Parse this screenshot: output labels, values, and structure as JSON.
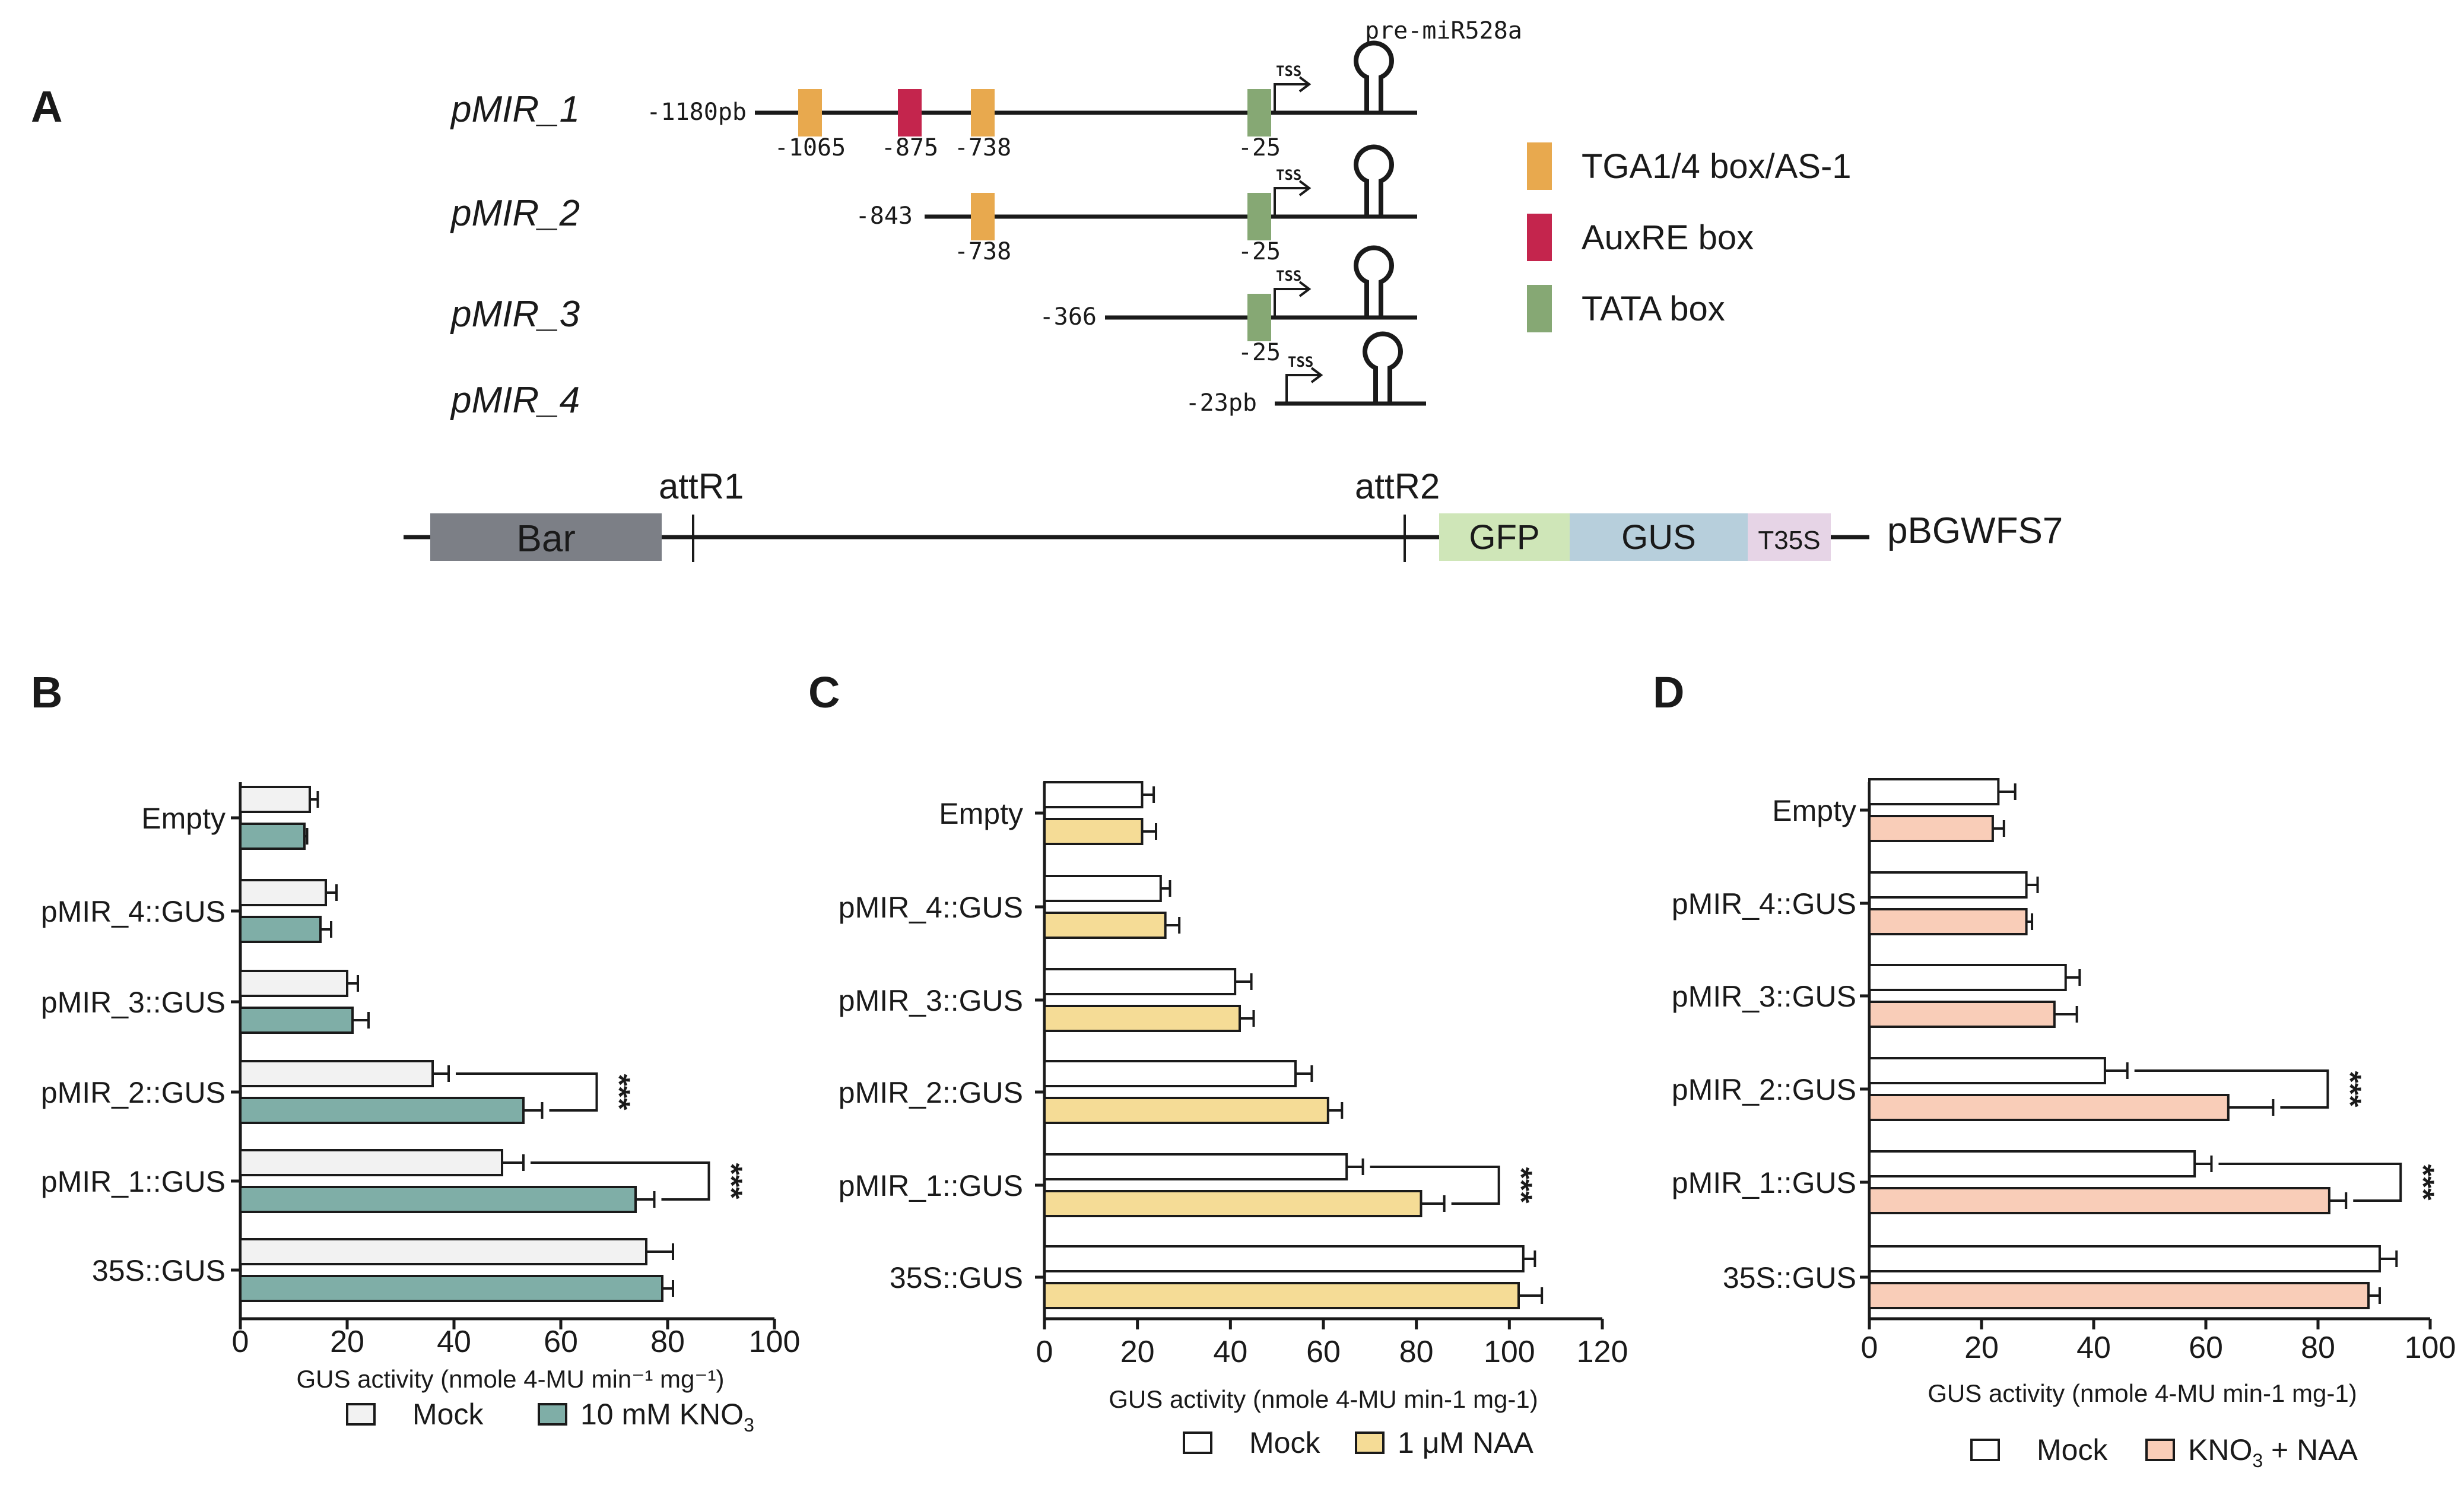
{
  "panel_a": {
    "letter": "A",
    "pre_mirna_label": "pre-miR528a",
    "tss_label": "TSS",
    "constructs": [
      {
        "name": "pMIR_1",
        "start_label": "-1180pb",
        "boxes": [
          {
            "type": "tga",
            "label": "-1065"
          },
          {
            "type": "auxre",
            "label": "-875"
          },
          {
            "type": "tga",
            "label": "-738"
          },
          {
            "type": "tata",
            "label": "-25"
          }
        ]
      },
      {
        "name": "pMIR_2",
        "start_label": "-843",
        "boxes": [
          {
            "type": "tga",
            "label": "-738"
          },
          {
            "type": "tata",
            "label": "-25"
          }
        ]
      },
      {
        "name": "pMIR_3",
        "start_label": "-366",
        "boxes": [
          {
            "type": "tata",
            "label": "-25"
          }
        ]
      },
      {
        "name": "pMIR_4",
        "start_label": "-23pb",
        "boxes": []
      }
    ],
    "legend": [
      {
        "key": "tga",
        "label": "TGA1/4 box/AS-1",
        "color": "#e8a94e"
      },
      {
        "key": "auxre",
        "label": "AuxRE box",
        "color": "#c4254d"
      },
      {
        "key": "tata",
        "label": "TATA box",
        "color": "#86a874"
      }
    ],
    "vector": {
      "name": "pBGWFS7",
      "att_left": "attR1",
      "att_right": "attR2",
      "segments": [
        {
          "label": "Bar",
          "color": "#7c7f86"
        },
        {
          "label": "GFP",
          "color": "#cfe6b8"
        },
        {
          "label": "GUS",
          "color": "#b7cfdc"
        },
        {
          "label": "T35S",
          "color": "#e6d4e6"
        }
      ]
    }
  },
  "chart_data": [
    {
      "panel": "B",
      "type": "bar",
      "orientation": "horizontal",
      "categories": [
        "Empty",
        "pMIR_4::GUS",
        "pMIR_3::GUS",
        "pMIR_2::GUS",
        "pMIR_1::GUS",
        "35S::GUS"
      ],
      "series": [
        {
          "name": "Mock",
          "color": "#f2f2f2",
          "values": [
            13,
            16,
            20,
            36,
            49,
            76
          ],
          "errors": [
            1.5,
            2,
            2,
            3,
            4,
            5
          ]
        },
        {
          "name": "10 mM KNO3",
          "color": "#7faea7",
          "values": [
            12,
            15,
            21,
            53,
            74,
            79
          ],
          "errors": [
            0.5,
            2,
            3,
            3.5,
            3.5,
            2
          ]
        }
      ],
      "significance": [
        {
          "category": "pMIR_2::GUS",
          "label": "***"
        },
        {
          "category": "pMIR_1::GUS",
          "label": "***"
        }
      ],
      "xlim": [
        0,
        100
      ],
      "xticks": [
        "0",
        "20",
        "40",
        "60",
        "80",
        "100"
      ],
      "xlabel": "GUS activity  (nmole 4-MU min⁻¹ mg⁻¹)",
      "legend_mock": "Mock",
      "legend_treat": "10 mM KNO",
      "legend_treat_sub": "3"
    },
    {
      "panel": "C",
      "type": "bar",
      "orientation": "horizontal",
      "categories": [
        "Empty",
        "pMIR_4::GUS",
        "pMIR_3::GUS",
        "pMIR_2::GUS",
        "pMIR_1::GUS",
        "35S::GUS"
      ],
      "series": [
        {
          "name": "Mock",
          "color": "#ffffff",
          "values": [
            21,
            25,
            41,
            54,
            65,
            103
          ],
          "errors": [
            2.5,
            2,
            3.5,
            3.5,
            3.5,
            2.5
          ]
        },
        {
          "name": "1 μM NAA",
          "color": "#f5dc96",
          "values": [
            21,
            26,
            42,
            61,
            81,
            102
          ],
          "errors": [
            3,
            3,
            3,
            3,
            5,
            5
          ]
        }
      ],
      "significance": [
        {
          "category": "pMIR_1::GUS",
          "label": "***"
        }
      ],
      "xlim": [
        0,
        120
      ],
      "xticks": [
        "0",
        "20",
        "40",
        "60",
        "80",
        "100",
        "120"
      ],
      "xlabel": "GUS activity  (nmole 4-MU min-1 mg-1)",
      "legend_mock": "Mock",
      "legend_treat": "1 μM NAA",
      "legend_treat_sub": ""
    },
    {
      "panel": "D",
      "type": "bar",
      "orientation": "horizontal",
      "categories": [
        "Empty",
        "pMIR_4::GUS",
        "pMIR_3::GUS",
        "pMIR_2::GUS",
        "pMIR_1::GUS",
        "35S::GUS"
      ],
      "series": [
        {
          "name": "Mock",
          "color": "#ffffff",
          "values": [
            23,
            28,
            35,
            42,
            58,
            91
          ],
          "errors": [
            3,
            2,
            2.5,
            4,
            3,
            3
          ]
        },
        {
          "name": "KNO3 + NAA",
          "color": "#f9cdb8",
          "values": [
            22,
            28,
            33,
            64,
            82,
            89
          ],
          "errors": [
            2,
            1,
            4,
            8,
            3,
            2
          ]
        }
      ],
      "significance": [
        {
          "category": "pMIR_2::GUS",
          "label": "***"
        },
        {
          "category": "pMIR_1::GUS",
          "label": "***"
        }
      ],
      "xlim": [
        0,
        100
      ],
      "xticks": [
        "0",
        "20",
        "40",
        "60",
        "80",
        "100"
      ],
      "xlabel": "GUS activity  (nmole 4-MU min-1 mg-1)",
      "legend_mock": "Mock",
      "legend_treat": "KNO",
      "legend_treat_sub": "3",
      "legend_treat_after": " + NAA"
    }
  ]
}
